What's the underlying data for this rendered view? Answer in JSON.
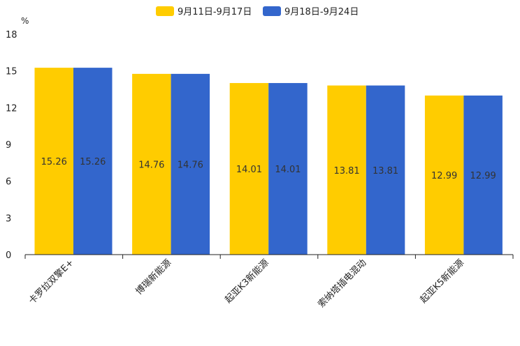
{
  "chart_data": {
    "type": "bar",
    "title": "",
    "unit": "%",
    "xlabel": "",
    "ylabel": "%",
    "ylim": [
      0,
      18
    ],
    "yticks": [
      0,
      3,
      6,
      9,
      12,
      15,
      18
    ],
    "grid": false,
    "legend_position": "top-center",
    "categories": [
      "卡罗拉双擎E+",
      "博瑞新能源",
      "起亚K3新能源",
      "索纳塔插电混动",
      "起亚K5新能源"
    ],
    "series": [
      {
        "name": "9月11日-9月17日",
        "color": "#FFCC00",
        "values": [
          15.26,
          14.76,
          14.01,
          13.81,
          12.99
        ]
      },
      {
        "name": "9月18日-9月24日",
        "color": "#3366CC",
        "values": [
          15.26,
          14.76,
          14.01,
          13.81,
          12.99
        ]
      }
    ]
  }
}
